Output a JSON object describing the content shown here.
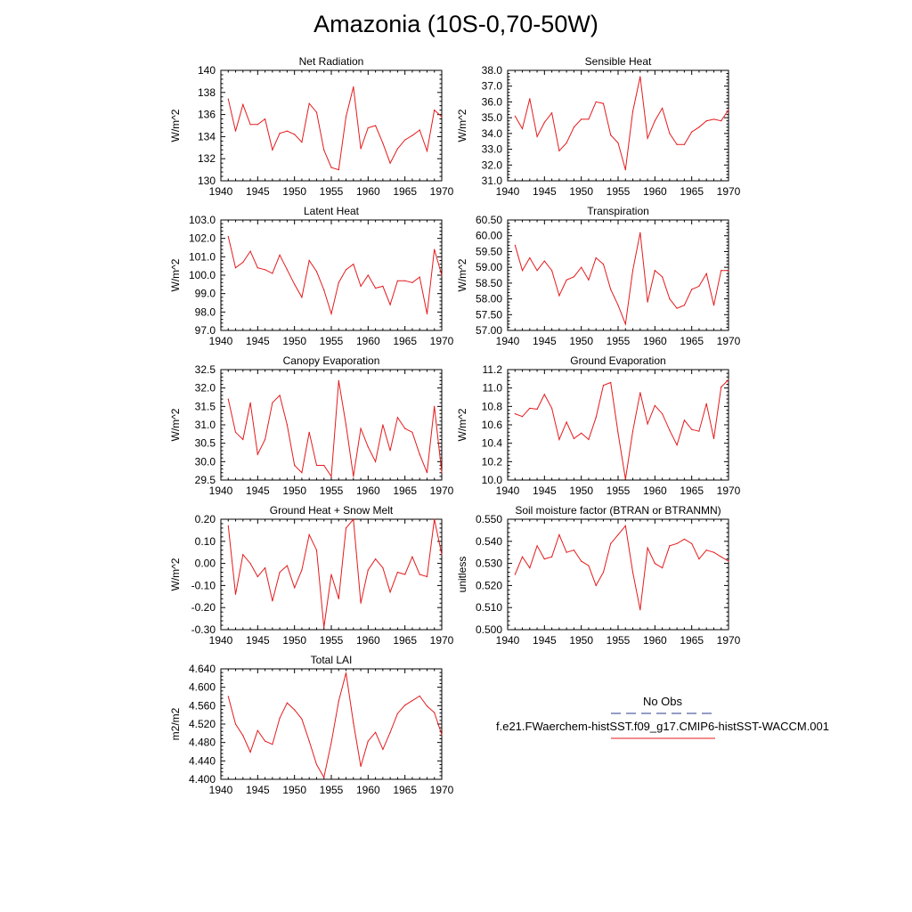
{
  "title": "Amazonia (10S-0,70-50W)",
  "legend": {
    "obs_label": "No Obs",
    "obs_color": "#2b3a8a",
    "model_label": "f.e21.FWaerchem-histSST.f09_g17.CMIP6-histSST-WACCM.001",
    "model_color": "#e41a1c"
  },
  "chart_data": [
    {
      "type": "line",
      "title": "Net Radiation",
      "ylabel": "W/m^2",
      "xlim": [
        1940,
        1970
      ],
      "ylim": [
        130,
        140
      ],
      "yticks": [
        "130",
        "132",
        "134",
        "136",
        "138",
        "140"
      ],
      "xticks": [
        "1940",
        "1945",
        "1950",
        "1955",
        "1960",
        "1965",
        "1970"
      ],
      "x": [
        1941,
        1942,
        1943,
        1944,
        1945,
        1946,
        1947,
        1948,
        1949,
        1950,
        1951,
        1952,
        1953,
        1954,
        1955,
        1956,
        1957,
        1958,
        1959,
        1960,
        1961,
        1962,
        1963,
        1964,
        1965,
        1966,
        1967,
        1968,
        1969,
        1970
      ],
      "series": [
        {
          "values": [
            137.4,
            134.5,
            136.9,
            135.1,
            135.1,
            135.6,
            132.8,
            134.3,
            134.5,
            134.2,
            133.5,
            137.0,
            136.2,
            132.8,
            131.2,
            131.0,
            135.8,
            138.5,
            132.9,
            134.8,
            135.0,
            133.4,
            131.6,
            132.9,
            133.7,
            134.1,
            134.6,
            132.7,
            136.4,
            135.8
          ]
        }
      ]
    },
    {
      "type": "line",
      "title": "Sensible Heat",
      "ylabel": "W/m^2",
      "xlim": [
        1940,
        1970
      ],
      "ylim": [
        31,
        38
      ],
      "yticks": [
        "31.0",
        "32.0",
        "33.0",
        "34.0",
        "35.0",
        "36.0",
        "37.0",
        "38.0"
      ],
      "xticks": [
        "1940",
        "1945",
        "1950",
        "1955",
        "1960",
        "1965",
        "1970"
      ],
      "x": [
        1941,
        1942,
        1943,
        1944,
        1945,
        1946,
        1947,
        1948,
        1949,
        1950,
        1951,
        1952,
        1953,
        1954,
        1955,
        1956,
        1957,
        1958,
        1959,
        1960,
        1961,
        1962,
        1963,
        1964,
        1965,
        1966,
        1967,
        1968,
        1969,
        1970
      ],
      "series": [
        {
          "values": [
            35.1,
            34.3,
            36.2,
            33.8,
            34.7,
            35.3,
            32.9,
            33.4,
            34.4,
            34.9,
            34.9,
            36.0,
            35.9,
            33.9,
            33.4,
            31.7,
            35.4,
            37.6,
            33.7,
            34.8,
            35.6,
            34.0,
            33.3,
            33.3,
            34.1,
            34.4,
            34.8,
            34.9,
            34.8,
            35.5
          ]
        }
      ]
    },
    {
      "type": "line",
      "title": "Latent Heat",
      "ylabel": "W/m^2",
      "xlim": [
        1940,
        1970
      ],
      "ylim": [
        97,
        103
      ],
      "yticks": [
        "97.0",
        "98.0",
        "99.0",
        "100.0",
        "101.0",
        "102.0",
        "103.0"
      ],
      "xticks": [
        "1940",
        "1945",
        "1950",
        "1955",
        "1960",
        "1965",
        "1970"
      ],
      "x": [
        1941,
        1942,
        1943,
        1944,
        1945,
        1946,
        1947,
        1948,
        1949,
        1950,
        1951,
        1952,
        1953,
        1954,
        1955,
        1956,
        1957,
        1958,
        1959,
        1960,
        1961,
        1962,
        1963,
        1964,
        1965,
        1966,
        1967,
        1968,
        1969,
        1970
      ],
      "series": [
        {
          "values": [
            102.1,
            100.4,
            100.7,
            101.3,
            100.4,
            100.3,
            100.1,
            101.1,
            100.3,
            99.5,
            98.8,
            100.8,
            100.2,
            99.2,
            97.9,
            99.6,
            100.3,
            100.6,
            99.4,
            100.0,
            99.3,
            99.4,
            98.4,
            99.7,
            99.7,
            99.6,
            99.9,
            97.9,
            101.4,
            100.0
          ]
        }
      ]
    },
    {
      "type": "line",
      "title": "Transpiration",
      "ylabel": "W/m^2",
      "xlim": [
        1940,
        1970
      ],
      "ylim": [
        57.0,
        60.5
      ],
      "yticks": [
        "57.00",
        "57.50",
        "58.00",
        "58.50",
        "59.00",
        "59.50",
        "60.00",
        "60.50"
      ],
      "xticks": [
        "1940",
        "1945",
        "1950",
        "1955",
        "1960",
        "1965",
        "1970"
      ],
      "x": [
        1941,
        1942,
        1943,
        1944,
        1945,
        1946,
        1947,
        1948,
        1949,
        1950,
        1951,
        1952,
        1953,
        1954,
        1955,
        1956,
        1957,
        1958,
        1959,
        1960,
        1961,
        1962,
        1963,
        1964,
        1965,
        1966,
        1967,
        1968,
        1969,
        1970
      ],
      "series": [
        {
          "values": [
            59.7,
            58.9,
            59.3,
            58.9,
            59.2,
            58.9,
            58.1,
            58.6,
            58.7,
            59.0,
            58.6,
            59.3,
            59.1,
            58.3,
            57.8,
            57.2,
            58.9,
            60.1,
            57.9,
            58.9,
            58.7,
            58.0,
            57.7,
            57.8,
            58.3,
            58.4,
            58.8,
            57.8,
            58.9,
            58.9
          ]
        }
      ]
    },
    {
      "type": "line",
      "title": "Canopy Evaporation",
      "ylabel": "W/m^2",
      "xlim": [
        1940,
        1970
      ],
      "ylim": [
        29.5,
        32.5
      ],
      "yticks": [
        "29.5",
        "30.0",
        "30.5",
        "31.0",
        "31.5",
        "32.0",
        "32.5"
      ],
      "xticks": [
        "1940",
        "1945",
        "1950",
        "1955",
        "1960",
        "1965",
        "1970"
      ],
      "x": [
        1941,
        1942,
        1943,
        1944,
        1945,
        1946,
        1947,
        1948,
        1949,
        1950,
        1951,
        1952,
        1953,
        1954,
        1955,
        1956,
        1957,
        1958,
        1959,
        1960,
        1961,
        1962,
        1963,
        1964,
        1965,
        1966,
        1967,
        1968,
        1969,
        1970
      ],
      "series": [
        {
          "values": [
            31.7,
            30.8,
            30.6,
            31.6,
            30.2,
            30.6,
            31.6,
            31.8,
            31.0,
            29.9,
            29.7,
            30.8,
            29.9,
            29.9,
            29.6,
            32.2,
            31.0,
            29.6,
            30.9,
            30.4,
            30.0,
            31.0,
            30.3,
            31.2,
            30.9,
            30.8,
            30.2,
            29.7,
            31.5,
            29.7
          ]
        }
      ]
    },
    {
      "type": "line",
      "title": "Ground Evaporation",
      "ylabel": "W/m^2",
      "xlim": [
        1940,
        1970
      ],
      "ylim": [
        10.0,
        11.2
      ],
      "yticks": [
        "10.0",
        "10.2",
        "10.4",
        "10.6",
        "10.8",
        "11.0",
        "11.2"
      ],
      "xticks": [
        "1940",
        "1945",
        "1950",
        "1955",
        "1960",
        "1965",
        "1970"
      ],
      "x": [
        1941,
        1942,
        1943,
        1944,
        1945,
        1946,
        1947,
        1948,
        1949,
        1950,
        1951,
        1952,
        1953,
        1954,
        1955,
        1956,
        1957,
        1958,
        1959,
        1960,
        1961,
        1962,
        1963,
        1964,
        1965,
        1966,
        1967,
        1968,
        1969,
        1970
      ],
      "series": [
        {
          "values": [
            10.72,
            10.69,
            10.78,
            10.77,
            10.93,
            10.78,
            10.44,
            10.63,
            10.45,
            10.51,
            10.44,
            10.68,
            11.03,
            11.06,
            10.51,
            10.01,
            10.53,
            10.95,
            10.61,
            10.81,
            10.72,
            10.54,
            10.38,
            10.65,
            10.55,
            10.53,
            10.83,
            10.45,
            11.01,
            11.09
          ]
        }
      ]
    },
    {
      "type": "line",
      "title": "Ground Heat + Snow Melt",
      "ylabel": "W/m^2",
      "xlim": [
        1940,
        1970
      ],
      "ylim": [
        -0.3,
        0.2
      ],
      "yticks": [
        "-0.30",
        "-0.20",
        "-0.10",
        "0.00",
        "0.10",
        "0.20"
      ],
      "xticks": [
        "1940",
        "1945",
        "1950",
        "1955",
        "1960",
        "1965",
        "1970"
      ],
      "x": [
        1941,
        1942,
        1943,
        1944,
        1945,
        1946,
        1947,
        1948,
        1949,
        1950,
        1951,
        1952,
        1953,
        1954,
        1955,
        1956,
        1957,
        1958,
        1959,
        1960,
        1961,
        1962,
        1963,
        1964,
        1965,
        1966,
        1967,
        1968,
        1969,
        1970
      ],
      "series": [
        {
          "values": [
            0.17,
            -0.14,
            0.04,
            0.0,
            -0.06,
            -0.02,
            -0.17,
            -0.04,
            -0.01,
            -0.11,
            -0.03,
            0.13,
            0.06,
            -0.29,
            -0.05,
            -0.16,
            0.16,
            0.2,
            -0.18,
            -0.03,
            0.02,
            -0.02,
            -0.13,
            -0.04,
            -0.05,
            0.03,
            -0.05,
            -0.06,
            0.2,
            0.04
          ]
        }
      ]
    },
    {
      "type": "line",
      "title": "Soil moisture factor (BTRAN or BTRANMN)",
      "ylabel": "unitless",
      "xlim": [
        1940,
        1970
      ],
      "ylim": [
        0.5,
        0.55
      ],
      "yticks": [
        "0.500",
        "0.510",
        "0.520",
        "0.530",
        "0.540",
        "0.550"
      ],
      "xticks": [
        "1940",
        "1945",
        "1950",
        "1955",
        "1960",
        "1965",
        "1970"
      ],
      "x": [
        1941,
        1942,
        1943,
        1944,
        1945,
        1946,
        1947,
        1948,
        1949,
        1950,
        1951,
        1952,
        1953,
        1954,
        1955,
        1956,
        1957,
        1958,
        1959,
        1960,
        1961,
        1962,
        1963,
        1964,
        1965,
        1966,
        1967,
        1968,
        1969,
        1970
      ],
      "series": [
        {
          "values": [
            0.525,
            0.533,
            0.528,
            0.538,
            0.532,
            0.533,
            0.543,
            0.535,
            0.536,
            0.531,
            0.529,
            0.52,
            0.526,
            0.539,
            0.543,
            0.547,
            0.526,
            0.509,
            0.537,
            0.53,
            0.528,
            0.538,
            0.539,
            0.541,
            0.539,
            0.532,
            0.536,
            0.535,
            0.533,
            0.531
          ]
        }
      ]
    },
    {
      "type": "line",
      "title": "Total LAI",
      "ylabel": "m2/m2",
      "xlim": [
        1940,
        1970
      ],
      "ylim": [
        4.4,
        4.64
      ],
      "yticks": [
        "4.400",
        "4.440",
        "4.480",
        "4.520",
        "4.560",
        "4.600",
        "4.640"
      ],
      "xticks": [
        "1940",
        "1945",
        "1950",
        "1955",
        "1960",
        "1965",
        "1970"
      ],
      "x": [
        1941,
        1942,
        1943,
        1944,
        1945,
        1946,
        1947,
        1948,
        1949,
        1950,
        1951,
        1952,
        1953,
        1954,
        1955,
        1956,
        1957,
        1958,
        1959,
        1960,
        1961,
        1962,
        1963,
        1964,
        1965,
        1966,
        1967,
        1968,
        1969,
        1970
      ],
      "series": [
        {
          "values": [
            4.58,
            4.52,
            4.495,
            4.459,
            4.506,
            4.483,
            4.476,
            4.533,
            4.566,
            4.551,
            4.531,
            4.483,
            4.432,
            4.404,
            4.48,
            4.57,
            4.631,
            4.523,
            4.428,
            4.483,
            4.502,
            4.465,
            4.502,
            4.543,
            4.561,
            4.571,
            4.581,
            4.559,
            4.545,
            4.497
          ]
        }
      ]
    }
  ]
}
